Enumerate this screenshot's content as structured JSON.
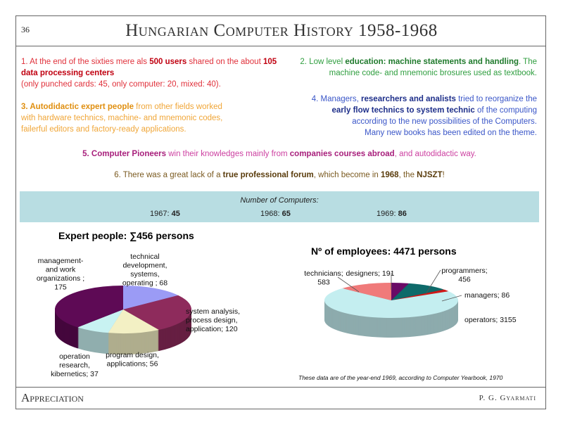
{
  "header": {
    "page_number": "36",
    "title": "Hungarian Computer History 1958-1968"
  },
  "items": [
    {
      "id": "item-1",
      "color": "#e0303a",
      "bold_color": "#c00010",
      "segments": [
        {
          "t": "1.    At the end of the sixties mere als ",
          "b": false
        },
        {
          "t": "500 users",
          "b": true
        },
        {
          "t": " shared on the about ",
          "b": false
        },
        {
          "t": "105 data processing centers",
          "b": true
        },
        {
          "t": "\n(only punched cards:  45, only computer: 20, mixed: 40).",
          "b": false
        }
      ]
    },
    {
      "id": "item-2",
      "color": "#2f9e3f",
      "bold_color": "#1f7a2c",
      "segments": [
        {
          "t": "2. Low level ",
          "b": false
        },
        {
          "t": "education: machine statements and handling",
          "b": true
        },
        {
          "t": ". The\nmachine code- and mnemonic brosures used as textbook.",
          "b": false
        }
      ]
    },
    {
      "id": "item-3",
      "color": "#f0a638",
      "bold_color": "#e08f10",
      "segments": [
        {
          "t": "3. Autodidactic expert people",
          "b": true
        },
        {
          "t": " from other fields worked\nwith hardware technics, machine- and mnemonic codes,\nfailerful editors  and factory-ready applications.",
          "b": false
        }
      ]
    },
    {
      "id": "item-4",
      "color": "#3a56c8",
      "bold_color": "#1e2f8a",
      "segments": [
        {
          "t": "4. Managers, ",
          "b": false
        },
        {
          "t": "researchers and analists",
          "b": true
        },
        {
          "t": " tried to reorganize the\n",
          "b": false
        },
        {
          "t": "early flow technics to system technic",
          "b": true
        },
        {
          "t": " of the computing\naccording to the new possibilities of the Computers.\nMany new books has been edited on the theme.",
          "b": false
        }
      ]
    },
    {
      "id": "item-5",
      "color": "#cc3fa0",
      "bold_color": "#a8207c",
      "segments": [
        {
          "t": "5. Computer Pioneers",
          "b": true
        },
        {
          "t": " win their knowledges mainly from ",
          "b": false
        },
        {
          "t": "companies courses abroad",
          "b": true
        },
        {
          "t": ", and autodidactic way.",
          "b": false
        }
      ]
    },
    {
      "id": "item-6",
      "color": "#7a5a20",
      "bold_color": "#5a3c0c",
      "segments": [
        {
          "t": "6. There was a great lack of a ",
          "b": false
        },
        {
          "t": "true professional forum",
          "b": true
        },
        {
          "t": ", which become in ",
          "b": false
        },
        {
          "t": "1968",
          "b": true
        },
        {
          "t": ",  the ",
          "b": false
        },
        {
          "t": "NJSZT",
          "b": true
        },
        {
          "t": "!",
          "b": false
        }
      ]
    }
  ],
  "computers": {
    "label": "Number of Computers:",
    "years": [
      {
        "year": "1967: ",
        "count": "45"
      },
      {
        "year": "1968: ",
        "count": "65"
      },
      {
        "year": "1969: ",
        "count": "86"
      }
    ]
  },
  "chart_data": [
    {
      "type": "pie",
      "title": "Expert people: ∑456 persons",
      "slices": [
        {
          "label": "technical development, systems, operating ; 68",
          "value": 68,
          "color": "#9b9bf5"
        },
        {
          "label": "system analysis, process design, application; 120",
          "value": 120,
          "color": "#8e2b5c"
        },
        {
          "label": "program design, applications; 56",
          "value": 56,
          "color": "#f3f0c4"
        },
        {
          "label": "operation research, kibernetics; 37",
          "value": 37,
          "color": "#c8f2f2"
        },
        {
          "label": "management- and work organizations ; 175",
          "value": 175,
          "color": "#5e0a55"
        }
      ]
    },
    {
      "type": "pie",
      "title": "Nº of employees: 4471 persons",
      "slices": [
        {
          "label": "designers; 191",
          "value": 191,
          "color": "#6a0a66"
        },
        {
          "label": "programmers; 456",
          "value": 456,
          "color": "#0e6a6a"
        },
        {
          "label": "managers; 86",
          "value": 86,
          "color": "#d01818"
        },
        {
          "label": "operators; 3155",
          "value": 3155,
          "color": "#c4eef0"
        },
        {
          "label": "technicians; 583",
          "value": 583,
          "color": "#f07a7a"
        }
      ]
    }
  ],
  "note": "These data are of the year-end 1969, according to Computer Yearbook, 1970",
  "footer": {
    "left": "Appreciation",
    "right": "P. G. Gyarmati"
  }
}
